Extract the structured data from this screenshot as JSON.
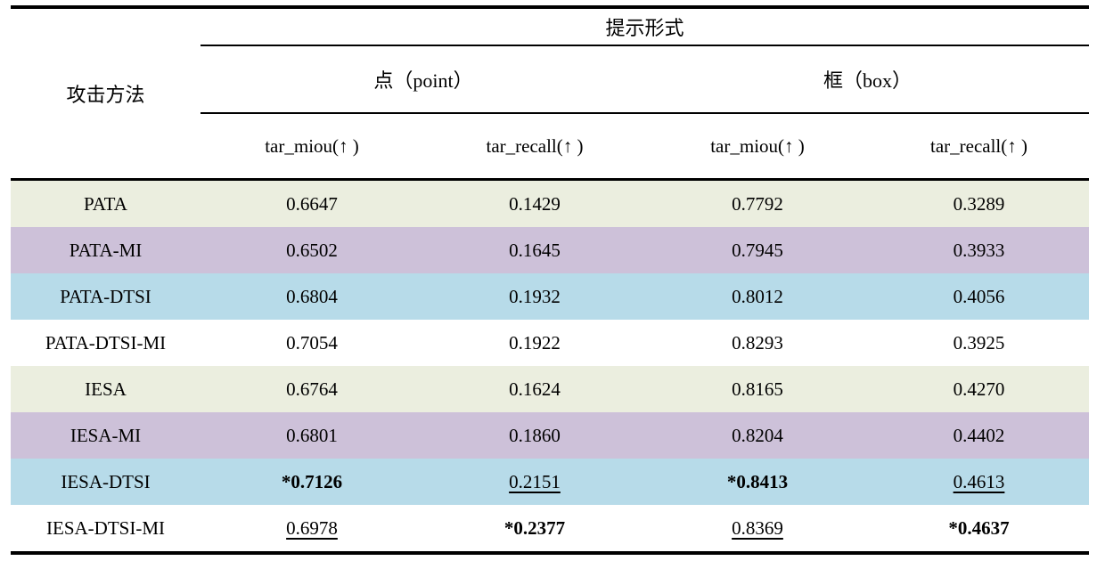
{
  "table": {
    "corner_header": "攻击方法",
    "top_header": "提示形式",
    "groups": [
      {
        "label": "点（point）"
      },
      {
        "label": "框（box）"
      }
    ],
    "metric_headers": [
      "tar_miou(↑ )",
      "tar_recall(↑ )",
      "tar_miou(↑ )",
      "tar_recall(↑ )"
    ],
    "rows": [
      {
        "method": "PATA",
        "tone": "green",
        "cells": [
          {
            "value": "0.6647"
          },
          {
            "value": "0.1429"
          },
          {
            "value": "0.7792"
          },
          {
            "value": "0.3289"
          }
        ]
      },
      {
        "method": "PATA-MI",
        "tone": "purple",
        "cells": [
          {
            "value": "0.6502"
          },
          {
            "value": "0.1645"
          },
          {
            "value": "0.7945"
          },
          {
            "value": "0.3933"
          }
        ]
      },
      {
        "method": "PATA-DTSI",
        "tone": "blue",
        "cells": [
          {
            "value": "0.6804"
          },
          {
            "value": "0.1932"
          },
          {
            "value": "0.8012"
          },
          {
            "value": "0.4056"
          }
        ]
      },
      {
        "method": "PATA-DTSI-MI",
        "tone": "white",
        "cells": [
          {
            "value": "0.7054"
          },
          {
            "value": "0.1922"
          },
          {
            "value": "0.8293"
          },
          {
            "value": "0.3925"
          }
        ]
      },
      {
        "method": "IESA",
        "tone": "green",
        "cells": [
          {
            "value": "0.6764"
          },
          {
            "value": "0.1624"
          },
          {
            "value": "0.8165"
          },
          {
            "value": "0.4270"
          }
        ]
      },
      {
        "method": "IESA-MI",
        "tone": "purple",
        "cells": [
          {
            "value": "0.6801"
          },
          {
            "value": "0.1860"
          },
          {
            "value": "0.8204"
          },
          {
            "value": "0.4402"
          }
        ]
      },
      {
        "method": "IESA-DTSI",
        "tone": "blue",
        "cells": [
          {
            "value": "*0.7126",
            "emph": "best"
          },
          {
            "value": "0.2151",
            "emph": "second"
          },
          {
            "value": "*0.8413",
            "emph": "best"
          },
          {
            "value": "0.4613",
            "emph": "second"
          }
        ]
      },
      {
        "method": "IESA-DTSI-MI",
        "tone": "white",
        "cells": [
          {
            "value": "0.6978",
            "emph": "second"
          },
          {
            "value": "*0.2377",
            "emph": "best"
          },
          {
            "value": "0.8369",
            "emph": "second"
          },
          {
            "value": "*0.4637",
            "emph": "best"
          }
        ]
      }
    ]
  },
  "colors": {
    "row_green": "#ebeedf",
    "row_purple": "#cdc1d9",
    "row_blue": "#b7dbe9",
    "row_white": "#ffffff",
    "border": "#000000",
    "text": "#000000"
  }
}
